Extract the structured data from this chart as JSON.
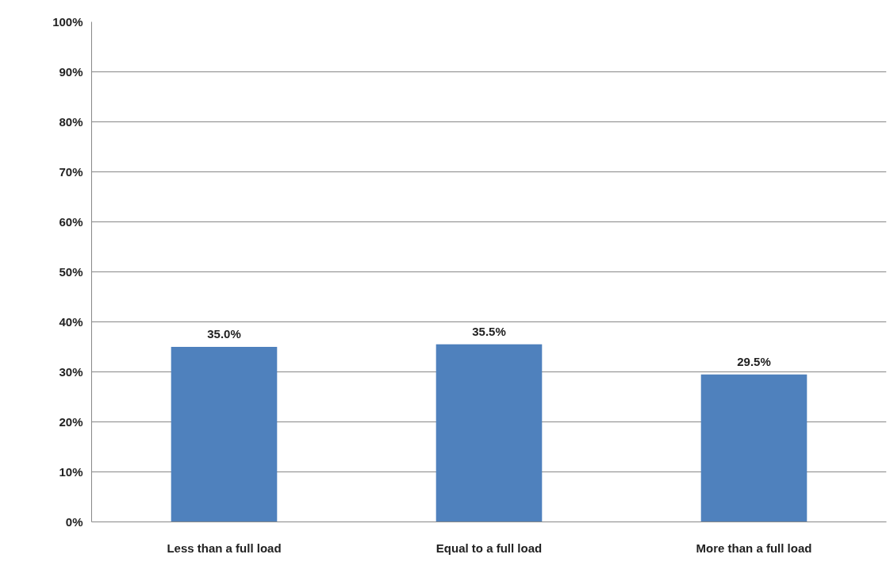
{
  "chart_data": {
    "type": "bar",
    "categories": [
      "Less than a full load",
      "Equal to a full load",
      "More than a full load"
    ],
    "values": [
      35.0,
      35.5,
      29.5
    ],
    "color": "#4f81bd",
    "value_labels": [
      "35.0%",
      "35.5%",
      "29.5%"
    ],
    "ylim": [
      0,
      100
    ],
    "yticks": [
      {
        "value": 0,
        "label": "0%"
      },
      {
        "value": 10,
        "label": "10%"
      },
      {
        "value": 20,
        "label": "20%"
      },
      {
        "value": 30,
        "label": "30%"
      },
      {
        "value": 40,
        "label": "40%"
      },
      {
        "value": 50,
        "label": "50%"
      },
      {
        "value": 60,
        "label": "60%"
      },
      {
        "value": 70,
        "label": "70%"
      },
      {
        "value": 80,
        "label": "80%"
      },
      {
        "value": 90,
        "label": "90%"
      },
      {
        "value": 100,
        "label": "100%"
      }
    ],
    "grid": "y"
  }
}
